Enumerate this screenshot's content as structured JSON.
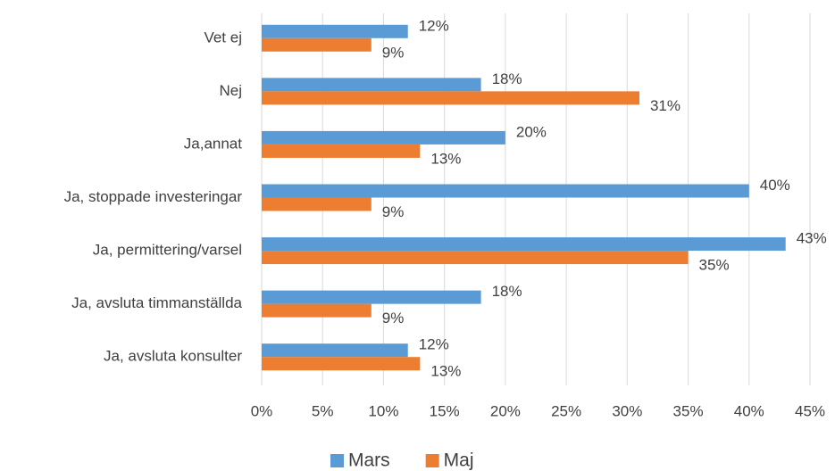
{
  "chart_data": {
    "type": "hbar",
    "categories": [
      "Vet ej",
      "Nej",
      "Ja,annat",
      "Ja, stoppade investeringar",
      "Ja, permittering/varsel",
      "Ja, avsluta timmanställda",
      "Ja, avsluta konsulter"
    ],
    "series": [
      {
        "name": "Mars",
        "color": "#5b9bd5",
        "values": [
          12,
          18,
          20,
          40,
          43,
          18,
          12
        ],
        "value_labels": [
          "12%",
          "18%",
          "20%",
          "40%",
          "43%",
          "18%",
          "12%"
        ]
      },
      {
        "name": "Maj",
        "color": "#ed7d31",
        "values": [
          9,
          31,
          13,
          9,
          35,
          9,
          13
        ],
        "value_labels": [
          "9%",
          "31%",
          "13%",
          "9%",
          "35%",
          "9%",
          "13%"
        ]
      }
    ],
    "xlim": [
      0,
      45
    ],
    "xticks": [
      {
        "value": 0,
        "label": "0%"
      },
      {
        "value": 5,
        "label": "5%"
      },
      {
        "value": 10,
        "label": "10%"
      },
      {
        "value": 15,
        "label": "15%"
      },
      {
        "value": 20,
        "label": "20%"
      },
      {
        "value": 25,
        "label": "25%"
      },
      {
        "value": 30,
        "label": "30%"
      },
      {
        "value": 35,
        "label": "35%"
      },
      {
        "value": 40,
        "label": "40%"
      },
      {
        "value": 45,
        "label": "45%"
      }
    ],
    "grid": true,
    "legend": "bottom"
  }
}
